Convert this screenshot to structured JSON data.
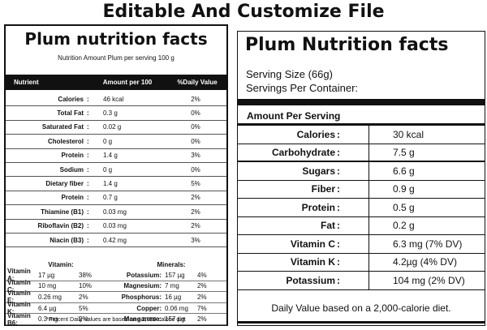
{
  "heading": "Editable And Customize File",
  "left": {
    "title": "Plum nutrition facts",
    "subtitle": "Nutrition Amount Plum per serving 100 g",
    "columns": [
      "Nutrient",
      "Amount per 100",
      "%Daily Value"
    ],
    "rows": [
      {
        "name": "Calories",
        "amount": "46 kcal",
        "dv": "2%"
      },
      {
        "name": "Total Fat",
        "amount": "0.3 g",
        "dv": "0%"
      },
      {
        "name": "Saturated Fat",
        "amount": "0.02 g",
        "dv": "0%"
      },
      {
        "name": "Cholesterol",
        "amount": "0 g",
        "dv": "0%"
      },
      {
        "name": "Protein",
        "amount": "1.4 g",
        "dv": "3%"
      },
      {
        "name": "Sodium",
        "amount": "0 g",
        "dv": "0%"
      },
      {
        "name": "Dietary fiber",
        "amount": "1.4 g",
        "dv": "5%"
      },
      {
        "name": "Protein",
        "amount": "0.7 g",
        "dv": "2%"
      },
      {
        "name": "Thiamine (B1)",
        "amount": "0.03 mg",
        "dv": "2%"
      },
      {
        "name": "Riboflavin (B2)",
        "amount": "0.03 mg",
        "dv": "2%"
      },
      {
        "name": "Niacin (B3)",
        "amount": "0.42 mg",
        "dv": "3%"
      }
    ],
    "vitamin_heading": "Vitamin:",
    "mineral_heading": "Minerals:",
    "vm_rows": [
      {
        "v": "Vitamin A:",
        "va": "17 µg",
        "vd": "38%",
        "m": "Potassium:",
        "ma": "157 µg",
        "md": "4%"
      },
      {
        "v": "Vitamin C:",
        "va": "10 mg",
        "vd": "10%",
        "m": "Magnesium:",
        "ma": "7 mg",
        "md": "2%"
      },
      {
        "v": "Vitamin E:",
        "va": "0.26 mg",
        "vd": "2%",
        "m": "Phosphorus:",
        "ma": "16 µg",
        "md": "2%"
      },
      {
        "v": "Vitamin K:",
        "va": "6.4 µg",
        "vd": "5%",
        "m": "Copper:",
        "ma": "0.06 mg",
        "md": "7%"
      },
      {
        "v": "Vitamin B6:",
        "va": "0.3 mg",
        "vd": "2%",
        "m": "Manganese:",
        "ma": "157 µg",
        "md": "2%"
      }
    ],
    "footnote": "*Percent Daily Values are based on a 2,000-calorie diet"
  },
  "right": {
    "title": "Plum Nutrition facts",
    "serving_size": "Serving Size (66g)",
    "servings_per_container": "Servings Per Container:",
    "amount_per_serving": "Amount Per Serving",
    "rows": [
      {
        "name": "Calories",
        "amount": "30 kcal"
      },
      {
        "name": "Carbohydrate",
        "amount": "7.5 g"
      },
      {
        "name": "Sugars",
        "amount": "6.6 g"
      },
      {
        "name": "Fiber",
        "amount": "0.9 g"
      },
      {
        "name": "Protein",
        "amount": "0.5 g"
      },
      {
        "name": "Fat",
        "amount": "0.2 g"
      },
      {
        "name": "Vitamin C",
        "amount": "6.3 mg (7% DV)"
      },
      {
        "name": "Vitamin K",
        "amount": "4.2µg (4% DV)"
      },
      {
        "name": "Potassium",
        "amount": "104 mg (2% DV)"
      }
    ],
    "footnote": "Daily Value based on a 2,000-calorie diet."
  }
}
